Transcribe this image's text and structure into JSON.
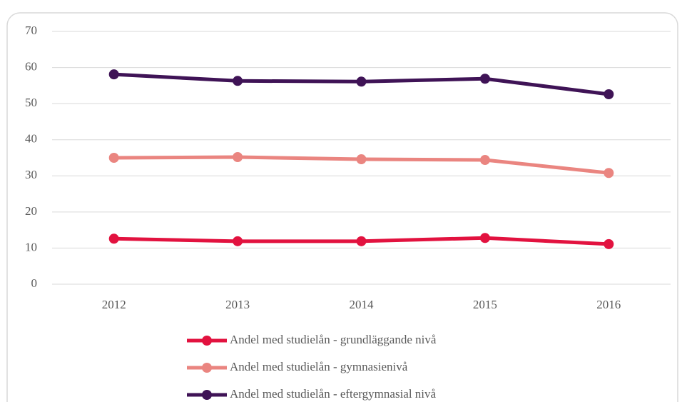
{
  "chart_data": {
    "type": "line",
    "categories": [
      "2012",
      "2013",
      "2014",
      "2015",
      "2016"
    ],
    "series": [
      {
        "name": "Andel med studielån - grundläggande nivå",
        "color": "#e2123f",
        "values": [
          12.6,
          11.9,
          11.9,
          12.8,
          11.1
        ]
      },
      {
        "name": "Andel med studielån - gymnasienivå",
        "color": "#ea8580",
        "values": [
          35.0,
          35.2,
          34.6,
          34.4,
          30.8
        ]
      },
      {
        "name": "Andel med studielån - eftergymnasial nivå",
        "color": "#3f1356",
        "values": [
          58.1,
          56.3,
          56.1,
          56.9,
          52.6
        ]
      }
    ],
    "ylim": [
      0,
      70
    ],
    "yticks": [
      0,
      10,
      20,
      30,
      40,
      50,
      60,
      70
    ],
    "grid": true,
    "legend": "bottom"
  }
}
